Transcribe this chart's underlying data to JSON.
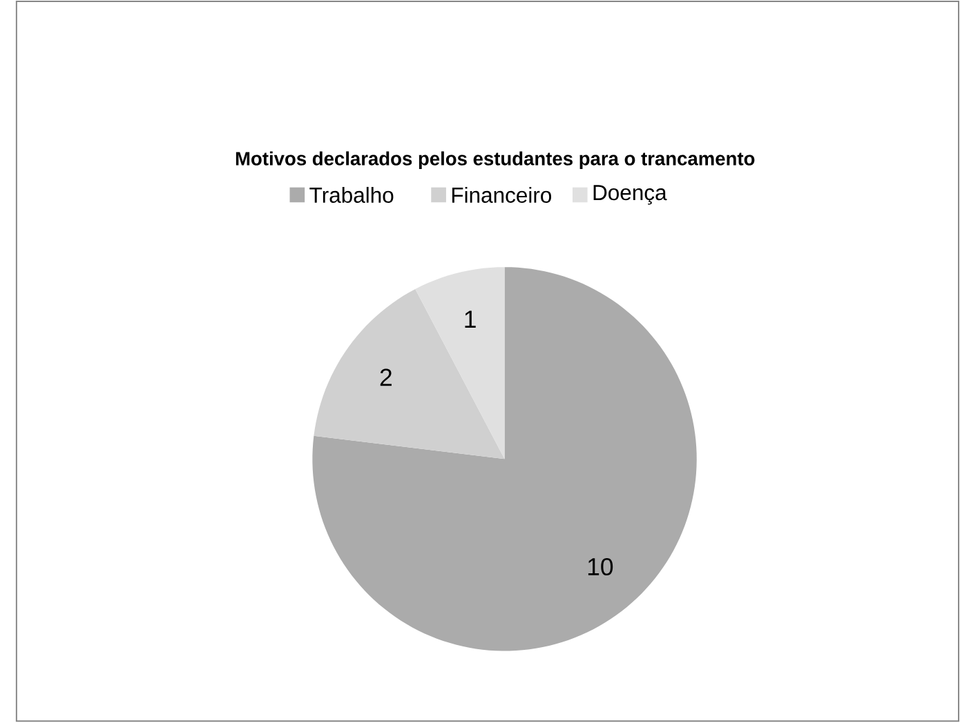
{
  "chart_data": {
    "type": "pie",
    "title": "Motivos declarados pelos estudantes para o trancamento",
    "categories": [
      "Trabalho",
      "Financeiro",
      "Doença"
    ],
    "values": [
      10,
      2,
      1
    ],
    "colors": [
      "#ababab",
      "#d0d0d0",
      "#e0e0e0"
    ],
    "data_labels": true,
    "legend": "top"
  }
}
